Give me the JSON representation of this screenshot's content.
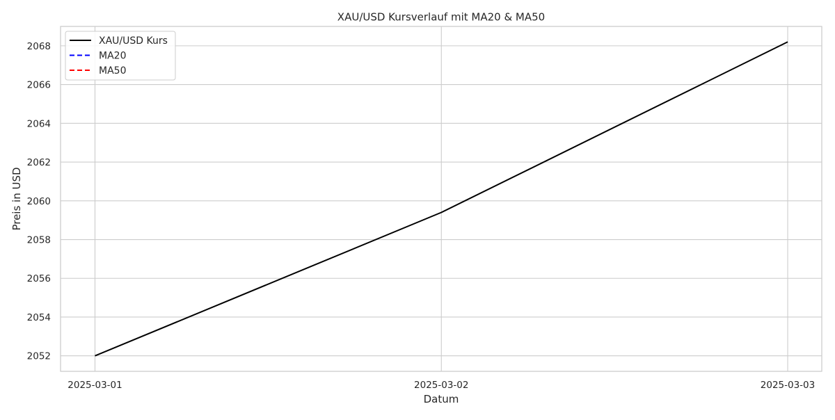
{
  "chart_data": {
    "type": "line",
    "title": "XAU/USD Kursverlauf mit MA20 & MA50",
    "xlabel": "Datum",
    "ylabel": "Preis in USD",
    "x": [
      "2025-03-01",
      "2025-03-02",
      "2025-03-03"
    ],
    "xticks": [
      "2025-03-01",
      "2025-03-02",
      "2025-03-03"
    ],
    "yticks": [
      2052,
      2054,
      2056,
      2058,
      2060,
      2062,
      2064,
      2066,
      2068
    ],
    "ylim": [
      2051.2,
      2069.0
    ],
    "grid": true,
    "legend_position": "top-left",
    "series": [
      {
        "name": "XAU/USD Kurs",
        "values": [
          2052.0,
          2059.4,
          2068.2
        ],
        "color": "#000000",
        "dash": "solid"
      },
      {
        "name": "MA20",
        "values": [
          null,
          null,
          null
        ],
        "color": "#0000ff",
        "dash": "dashed"
      },
      {
        "name": "MA50",
        "values": [
          null,
          null,
          null
        ],
        "color": "#ff0000",
        "dash": "dashed"
      }
    ]
  }
}
